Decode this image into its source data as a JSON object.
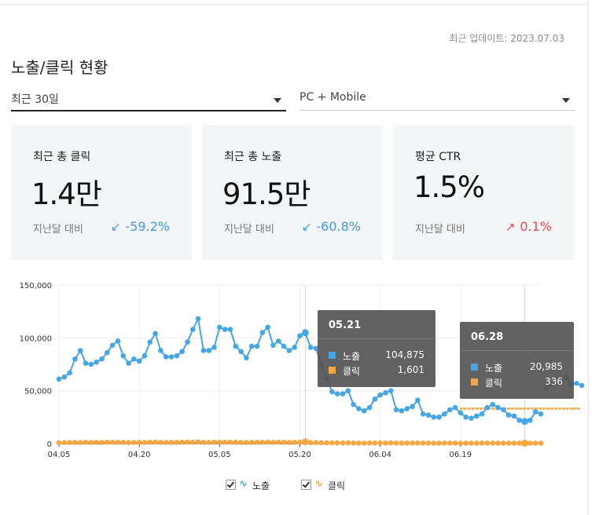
{
  "header": {
    "update_label": "최근 업데이트: 2023.07.03",
    "title": "노출/클릭 현황"
  },
  "filters": {
    "period": "최근 30일",
    "device": "PC + Mobile"
  },
  "cards": [
    {
      "label": "최근 총 클릭",
      "value": "1.4만",
      "prev_label": "지난달 대비",
      "delta": "-59.2%",
      "direction": "down"
    },
    {
      "label": "최근 총 노출",
      "value": "91.5만",
      "prev_label": "지난달 대비",
      "delta": "-60.8%",
      "direction": "down"
    },
    {
      "label": "평균 CTR",
      "value": "1.5%",
      "prev_label": "지난달 대비",
      "delta": "0.1%",
      "direction": "up"
    }
  ],
  "colors": {
    "impressions": "#45a6e6",
    "clicks": "#f7a640",
    "down": "#3f9ae3",
    "up": "#ee4a4a"
  },
  "chart_data": {
    "type": "line",
    "x_ticks": [
      "04.05",
      "04.20",
      "05.05",
      "05.20",
      "06.04",
      "06.19"
    ],
    "y_ticks": [
      "150,000",
      "100,000",
      "50,000",
      "0"
    ],
    "ylim": [
      0,
      150000
    ],
    "series": [
      {
        "name": "노출",
        "color": "#45a6e6",
        "values": [
          61000,
          63000,
          67000,
          80000,
          88000,
          76000,
          75000,
          77000,
          80000,
          86000,
          93000,
          97000,
          83000,
          76000,
          80000,
          78000,
          83000,
          96000,
          104000,
          88000,
          82000,
          82000,
          83000,
          87000,
          96000,
          108000,
          118000,
          88000,
          88000,
          91000,
          110000,
          108000,
          108000,
          92000,
          87000,
          81000,
          92000,
          92000,
          105000,
          110000,
          93000,
          97000,
          92000,
          88000,
          91000,
          102000,
          104875,
          91000,
          90000,
          75000,
          62000,
          49000,
          47000,
          47000,
          50000,
          37000,
          33000,
          31000,
          34000,
          42000,
          46000,
          48000,
          50000,
          32000,
          31000,
          33000,
          35000,
          41000,
          28000,
          27000,
          25000,
          25000,
          28000,
          32000,
          34000,
          29000,
          25000,
          24000,
          26000,
          28000,
          34000,
          37000,
          34000,
          32000,
          27000,
          26000,
          22000,
          20985,
          22000,
          30000,
          28000
        ]
      },
      {
        "name": "클릭",
        "color": "#f7a640",
        "values": [
          700,
          900,
          1000,
          1100,
          1000,
          1200,
          1100,
          1200,
          1100,
          1300,
          1200,
          1300,
          1100,
          1000,
          1100,
          1200,
          1100,
          1300,
          1400,
          1200,
          1100,
          1100,
          1200,
          1300,
          1400,
          1300,
          1500,
          1200,
          1100,
          1300,
          1400,
          1300,
          1300,
          1200,
          1100,
          1000,
          1200,
          1200,
          1300,
          1400,
          1200,
          1300,
          1200,
          1100,
          1200,
          1300,
          1601,
          1000,
          900,
          800,
          700,
          600,
          600,
          500,
          600,
          500,
          400,
          400,
          500,
          500,
          600,
          500,
          600,
          400,
          400,
          400,
          500,
          500,
          400,
          400,
          300,
          300,
          400,
          400,
          400,
          300,
          300,
          300,
          300,
          400,
          400,
          400,
          300,
          300,
          300,
          300,
          300,
          336,
          300,
          300,
          300
        ]
      }
    ],
    "trail": {
      "impressions": [
        53000,
        56000,
        61000,
        58000,
        62000,
        56000,
        57000,
        55000
      ],
      "clicks_level": 33000
    },
    "tooltips": [
      {
        "date": "05.21",
        "rows": [
          {
            "name": "노출",
            "value": "104,875"
          },
          {
            "name": "클릭",
            "value": "1,601"
          }
        ]
      },
      {
        "date": "06.28",
        "rows": [
          {
            "name": "노출",
            "value": "20,985"
          },
          {
            "name": "클릭",
            "value": "336"
          }
        ]
      }
    ],
    "grid": true
  },
  "legend": [
    {
      "label": "노출",
      "icon": "wave-icon"
    },
    {
      "label": "클릭",
      "icon": "wave-icon"
    }
  ]
}
